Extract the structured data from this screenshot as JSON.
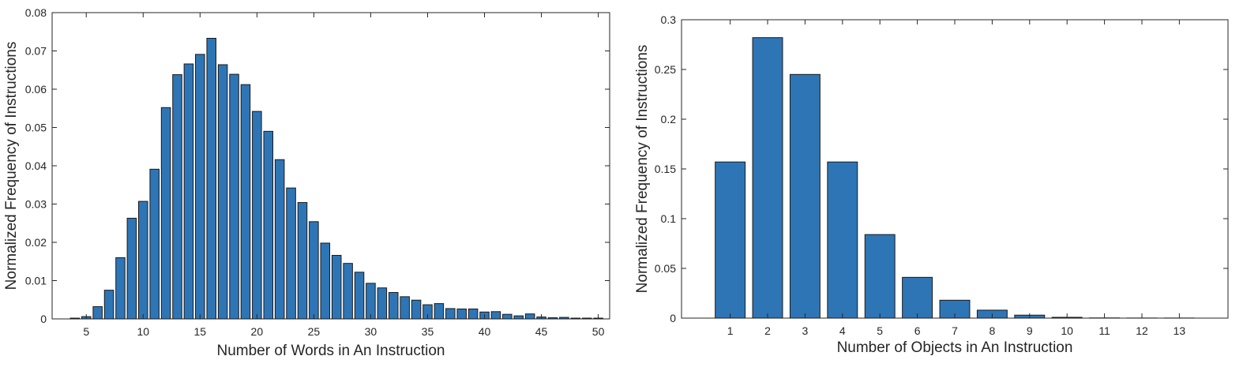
{
  "chart_data": [
    {
      "type": "bar",
      "title": "",
      "xlabel": "Number of Words in An Instruction",
      "ylabel": "Normalized Frequency of Instructions",
      "xlim": [
        2,
        51
      ],
      "ylim": [
        0,
        0.08
      ],
      "xticks": [
        5,
        10,
        15,
        20,
        25,
        30,
        35,
        40,
        45,
        50
      ],
      "xtick_labels": [
        "5",
        "10",
        "15",
        "20",
        "25",
        "30",
        "35",
        "40",
        "45",
        "50"
      ],
      "yticks": [
        0,
        0.01,
        0.02,
        0.03,
        0.04,
        0.05,
        0.06,
        0.07,
        0.08
      ],
      "ytick_labels": [
        "0",
        "0.01",
        "0.02",
        "0.03",
        "0.04",
        "0.05",
        "0.06",
        "0.07",
        "0.08"
      ],
      "x": [
        4,
        5,
        6,
        7,
        8,
        9,
        10,
        11,
        12,
        13,
        14,
        15,
        16,
        17,
        18,
        19,
        20,
        21,
        22,
        23,
        24,
        25,
        26,
        27,
        28,
        29,
        30,
        31,
        32,
        33,
        34,
        35,
        36,
        37,
        38,
        39,
        40,
        41,
        42,
        43,
        44,
        45,
        46,
        47,
        48,
        49,
        50
      ],
      "values": [
        0.0002,
        0.0006,
        0.0032,
        0.0075,
        0.016,
        0.0263,
        0.0307,
        0.0391,
        0.0552,
        0.0638,
        0.0666,
        0.0691,
        0.0733,
        0.0664,
        0.0639,
        0.0612,
        0.0542,
        0.049,
        0.0416,
        0.0342,
        0.0304,
        0.0254,
        0.0198,
        0.0166,
        0.0145,
        0.0122,
        0.0093,
        0.0081,
        0.0069,
        0.0058,
        0.0049,
        0.0037,
        0.004,
        0.0027,
        0.0026,
        0.0026,
        0.0018,
        0.0019,
        0.0012,
        0.0008,
        0.0013,
        0.0005,
        0.0003,
        0.0004,
        0.0002,
        0.0002,
        0.0002
      ],
      "grid": false
    },
    {
      "type": "bar",
      "title": "",
      "xlabel": "Number of Objects in An Instruction",
      "ylabel": "Normalized Frequency of Instructions",
      "xlim": [
        -0.3,
        14.3
      ],
      "ylim": [
        0,
        0.3
      ],
      "xticks": [
        1,
        2,
        3,
        4,
        5,
        6,
        7,
        8,
        9,
        10,
        11,
        12,
        13
      ],
      "xtick_labels": [
        "1",
        "2",
        "3",
        "4",
        "5",
        "6",
        "7",
        "8",
        "9",
        "10",
        "11",
        "12",
        "13"
      ],
      "yticks": [
        0,
        0.05,
        0.1,
        0.15,
        0.2,
        0.25,
        0.3
      ],
      "ytick_labels": [
        "0",
        "0.05",
        "0.1",
        "0.15",
        "0.2",
        "0.25",
        "0.3"
      ],
      "x": [
        1,
        2,
        3,
        4,
        5,
        6,
        7,
        8,
        9,
        10,
        11,
        12,
        13
      ],
      "values": [
        0.157,
        0.282,
        0.245,
        0.157,
        0.084,
        0.041,
        0.018,
        0.008,
        0.003,
        0.0008,
        0.0002,
        0.0001,
        0.0001
      ],
      "grid": false
    }
  ]
}
